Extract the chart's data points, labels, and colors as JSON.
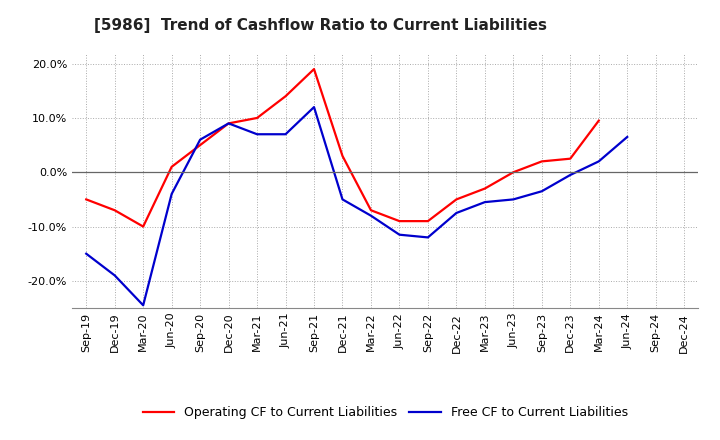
{
  "title": "[5986]  Trend of Cashflow Ratio to Current Liabilities",
  "x_labels": [
    "Sep-19",
    "Dec-19",
    "Mar-20",
    "Jun-20",
    "Sep-20",
    "Dec-20",
    "Mar-21",
    "Jun-21",
    "Sep-21",
    "Dec-21",
    "Mar-22",
    "Jun-22",
    "Sep-22",
    "Dec-22",
    "Mar-23",
    "Jun-23",
    "Sep-23",
    "Dec-23",
    "Mar-24",
    "Jun-24",
    "Sep-24",
    "Dec-24"
  ],
  "operating_cf": [
    -0.05,
    -0.07,
    -0.1,
    0.01,
    0.05,
    0.09,
    0.1,
    0.14,
    0.19,
    0.03,
    -0.07,
    -0.09,
    -0.09,
    -0.05,
    -0.03,
    0.0,
    0.02,
    0.025,
    0.095,
    null,
    null,
    null
  ],
  "free_cf": [
    -0.15,
    -0.19,
    -0.245,
    -0.04,
    0.06,
    0.09,
    0.07,
    0.07,
    0.12,
    -0.05,
    -0.08,
    -0.115,
    -0.12,
    -0.075,
    -0.055,
    -0.05,
    -0.035,
    -0.005,
    0.02,
    0.065,
    null,
    null
  ],
  "operating_color": "#FF0000",
  "free_color": "#0000CD",
  "ylim": [
    -0.25,
    0.22
  ],
  "yticks": [
    -0.2,
    -0.1,
    0.0,
    0.1,
    0.2
  ],
  "background_color": "#FFFFFF",
  "grid_color": "#AAAAAA",
  "legend_op": "Operating CF to Current Liabilities",
  "legend_free": "Free CF to Current Liabilities",
  "title_fontsize": 11,
  "tick_fontsize": 8
}
